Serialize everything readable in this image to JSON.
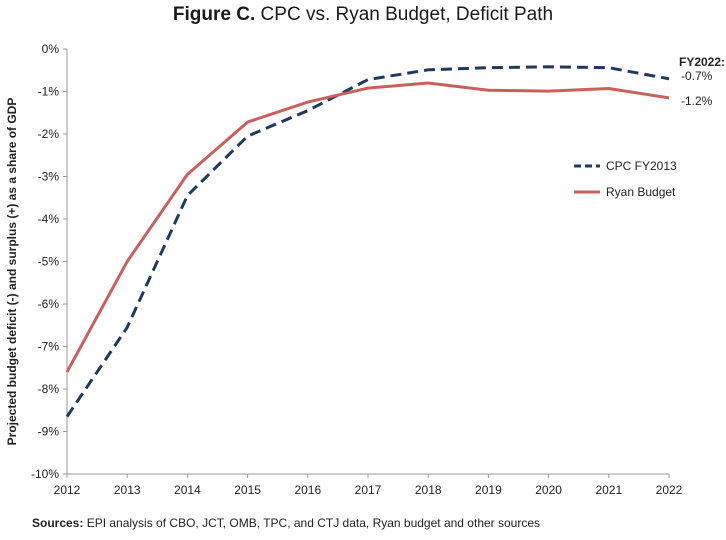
{
  "title": {
    "lead": "Figure C.",
    "rest": " CPC vs. Ryan Budget, Deficit Path"
  },
  "source": {
    "label": "Sources:",
    "text": " EPI analysis of CBO, JCT, OMB, TPC, and CTJ data, Ryan budget and other sources"
  },
  "colors": {
    "cpc": "#1f3a5f",
    "ryan": "#c9605c",
    "axis": "#9a9a9a",
    "text": "#222222"
  },
  "chart_data": {
    "type": "line",
    "title": "Figure C. CPC vs. Ryan Budget, Deficit Path",
    "xlabel": "",
    "ylabel": "Projected budget deficit (-) and surplus (+) as a share of GDP",
    "x": [
      2012,
      2013,
      2014,
      2015,
      2016,
      2017,
      2018,
      2019,
      2020,
      2021,
      2022
    ],
    "x_tick_labels": [
      "2012",
      "2013",
      "2014",
      "2015",
      "2016",
      "2017",
      "2018",
      "2019",
      "2020",
      "2021",
      "2022"
    ],
    "ylim": [
      -10,
      0
    ],
    "y_ticks": [
      0,
      -1,
      -2,
      -3,
      -4,
      -5,
      -6,
      -7,
      -8,
      -9,
      -10
    ],
    "y_tick_labels": [
      "0%",
      "-1%",
      "-2%",
      "-3%",
      "-4%",
      "-5%",
      "-6%",
      "-7%",
      "-8%",
      "-9%",
      "-10%"
    ],
    "grid": false,
    "legend_position": "right",
    "series": [
      {
        "name": "CPC FY2013",
        "style": "dashed",
        "color": "#1f3a5f",
        "values": [
          -8.65,
          -6.55,
          -3.45,
          -2.05,
          -1.45,
          -0.72,
          -0.49,
          -0.44,
          -0.42,
          -0.44,
          -0.7
        ]
      },
      {
        "name": "Ryan Budget",
        "style": "solid",
        "color": "#c9605c",
        "values": [
          -7.6,
          -5.0,
          -2.95,
          -1.72,
          -1.25,
          -0.92,
          -0.8,
          -0.97,
          -0.99,
          -0.93,
          -1.15
        ]
      }
    ],
    "annotations": [
      {
        "text": "FY2022:",
        "bold": true
      },
      {
        "text": "-0.7%",
        "series": "CPC FY2013"
      },
      {
        "text": "-1.2%",
        "series": "Ryan Budget"
      }
    ]
  }
}
